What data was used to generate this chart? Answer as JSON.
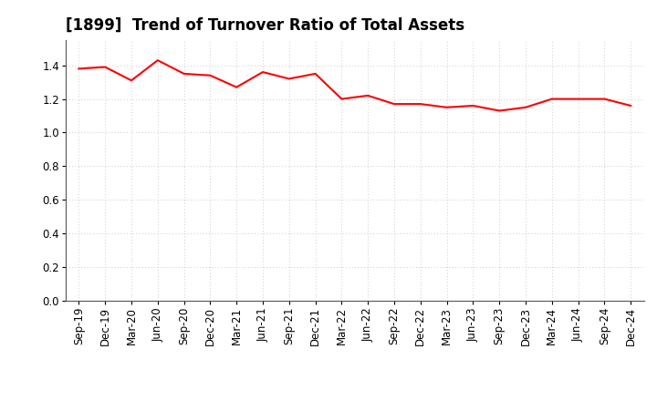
{
  "title": "[1899]  Trend of Turnover Ratio of Total Assets",
  "x_labels": [
    "Sep-19",
    "Dec-19",
    "Mar-20",
    "Jun-20",
    "Sep-20",
    "Dec-20",
    "Mar-21",
    "Jun-21",
    "Sep-21",
    "Dec-21",
    "Mar-22",
    "Jun-22",
    "Sep-22",
    "Dec-22",
    "Mar-23",
    "Jun-23",
    "Sep-23",
    "Dec-23",
    "Mar-24",
    "Jun-24",
    "Sep-24",
    "Dec-24"
  ],
  "values": [
    1.38,
    1.39,
    1.31,
    1.43,
    1.35,
    1.34,
    1.27,
    1.36,
    1.32,
    1.35,
    1.2,
    1.22,
    1.17,
    1.17,
    1.15,
    1.16,
    1.13,
    1.15,
    1.2,
    1.2,
    1.2,
    1.16
  ],
  "line_color": "#FF0000",
  "line_width": 1.5,
  "ylim": [
    0.0,
    1.55
  ],
  "yticks": [
    0.0,
    0.2,
    0.4,
    0.6,
    0.8,
    1.0,
    1.2,
    1.4
  ],
  "grid_color": "#bbbbbb",
  "background_color": "#ffffff",
  "plot_bg_color": "#f0f0f0",
  "title_fontsize": 12,
  "tick_fontsize": 8.5
}
